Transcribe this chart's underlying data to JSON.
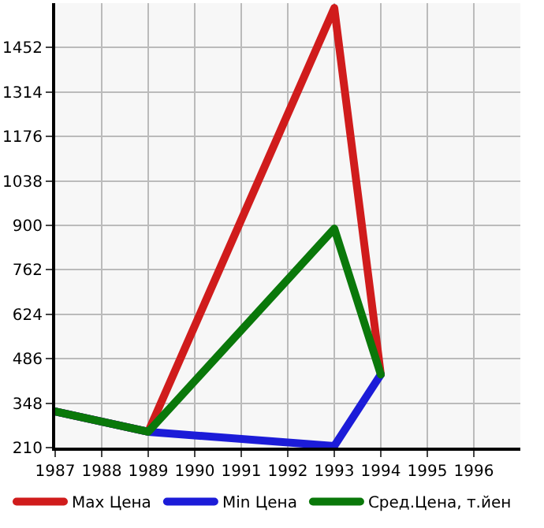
{
  "chart_data": {
    "type": "line",
    "x": [
      1987,
      1989,
      1993,
      1994
    ],
    "series": [
      {
        "name": "Max Цена",
        "color": "#d01c1c",
        "values": [
          322,
          259,
          1575,
          437
        ]
      },
      {
        "name": "Min Цена",
        "color": "#1c1cd8",
        "values": [
          322,
          259,
          215,
          437
        ]
      },
      {
        "name": "Сред.Цена, т.йен",
        "color": "#0a780a",
        "values": [
          322,
          259,
          890,
          437
        ]
      }
    ],
    "xlim": [
      1987,
      1997
    ],
    "xticks": [
      1987,
      1988,
      1989,
      1990,
      1991,
      1992,
      1993,
      1994,
      1995,
      1996
    ],
    "ylim": [
      210,
      1590
    ],
    "yticks": [
      210,
      348,
      486,
      624,
      762,
      900,
      1038,
      1176,
      1314,
      1452
    ],
    "grid": true,
    "legend": "bottom",
    "marker": "none",
    "line_style": "solid"
  }
}
